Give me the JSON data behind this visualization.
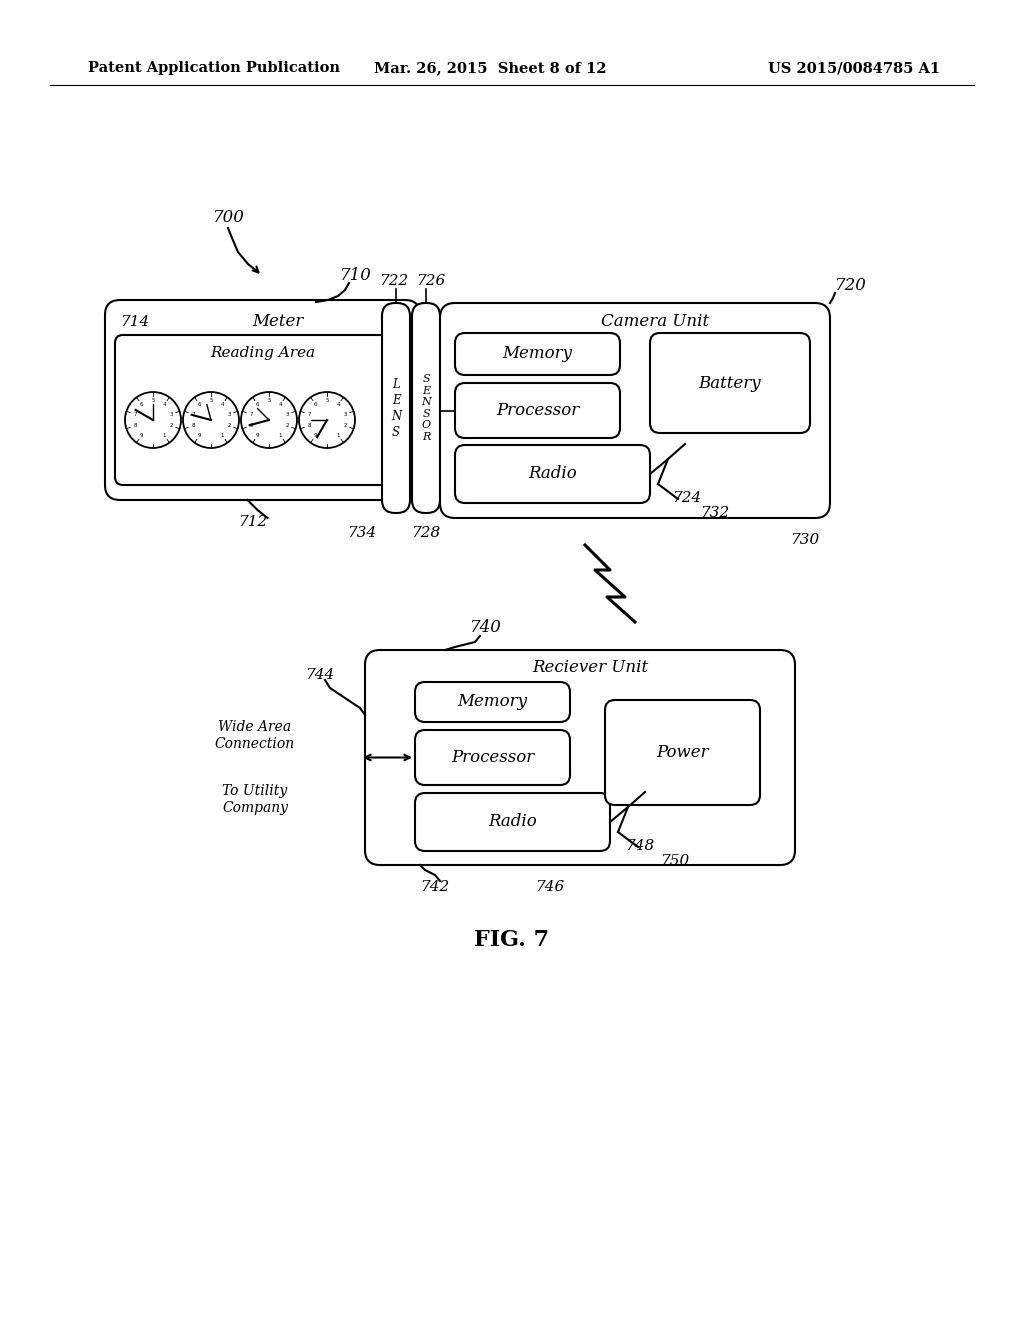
{
  "header_left": "Patent Application Publication",
  "header_center": "Mar. 26, 2015  Sheet 8 of 12",
  "header_right": "US 2015/0084785 A1",
  "fig_label": "FIG. 7",
  "background_color": "#ffffff",
  "line_color": "#000000",
  "label_700": "700",
  "label_710": "710",
  "label_712": "712",
  "label_714": "714",
  "label_720": "720",
  "label_722": "722",
  "label_724": "724",
  "label_726": "726",
  "label_728": "728",
  "label_730": "730",
  "label_732": "732",
  "label_734": "734",
  "label_740": "740",
  "label_742": "742",
  "label_744": "744",
  "label_746": "746",
  "label_748": "748",
  "label_750": "750",
  "text_meter": "Meter",
  "text_reading_area": "Reading Area",
  "text_camera_unit": "Camera Unit",
  "text_memory1": "Memory",
  "text_battery": "Battery",
  "text_processor1": "Processor",
  "text_radio1": "Radio",
  "text_lens": "L\nE\nN\nS",
  "text_sensor": "S\nE\nN\nS\nO\nR",
  "text_receiver_unit": "Reciever Unit",
  "text_memory2": "Memory",
  "text_power": "Power",
  "text_processor2": "Processor",
  "text_radio2": "Radio",
  "text_wide_area": "Wide Area\nConnection",
  "text_to_utility": "To Utility\nCompany"
}
